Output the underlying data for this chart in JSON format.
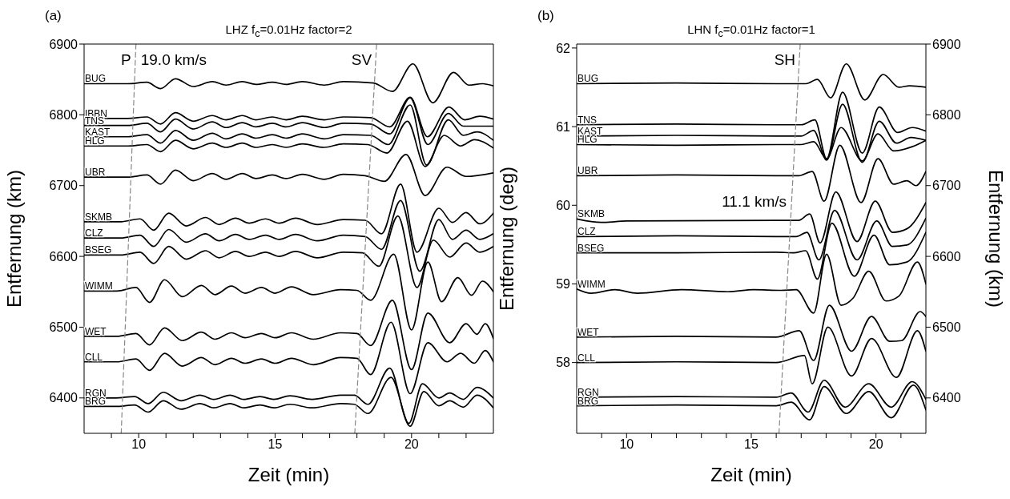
{
  "chart_data": [
    {
      "type": "line",
      "title": "LHZ f$_{c}$=0.01Hz factor=2",
      "xlabel": "Zeit (min)",
      "ylabel": "Entfernung (km)",
      "xlim": [
        8,
        23
      ],
      "ylim": [
        6350,
        6900
      ],
      "xticks": [
        {
          "value": 9,
          "label": null
        },
        10,
        {
          "value": 11,
          "label": null
        },
        {
          "value": 12,
          "label": null
        },
        {
          "value": 13,
          "label": null
        },
        {
          "value": 14,
          "label": null
        },
        15,
        {
          "value": 16,
          "label": null
        },
        {
          "value": 17,
          "label": null
        },
        {
          "value": 18,
          "label": null
        },
        {
          "value": 19,
          "label": null
        },
        20,
        {
          "value": 21,
          "label": null
        },
        {
          "value": 22,
          "label": null
        }
      ],
      "yticks": [
        6400,
        6500,
        6600,
        6700,
        6800,
        6900
      ],
      "annotations": [
        "(a)",
        {
          "text": "P",
          "x": 9.9,
          "y": 6900
        },
        {
          "text": "19.0 km/s",
          "x": 9.9,
          "y": 6900
        },
        {
          "text": "SV",
          "x": 18.72,
          "y": 6900
        }
      ],
      "series": [
        {
          "name": "BUG",
          "color": "#000000",
          "x": [
            8,
            9.6,
            10.3,
            10.8,
            11.35,
            12.0,
            12.7,
            13.2,
            13.8,
            14.3,
            14.9,
            15.4,
            16.0,
            16.8,
            17.5,
            18.6,
            19.3,
            20.05,
            20.78,
            21.54,
            22.1,
            22.6,
            23
          ],
          "values": [
            6844,
            6844,
            6846,
            6837,
            6851,
            6840,
            6847,
            6842,
            6847,
            6843,
            6846,
            6843,
            6847,
            6842,
            6847,
            6845,
            6833,
            6872,
            6817,
            6860,
            6842,
            6844,
            6841
          ]
        },
        {
          "name": "IBBN",
          "color": "#000000",
          "x": [
            8,
            9.6,
            10.3,
            10.8,
            11.35,
            12.0,
            12.7,
            13.2,
            13.8,
            14.3,
            14.9,
            15.4,
            16.0,
            16.8,
            17.5,
            18.5,
            19.2,
            19.95,
            20.58,
            21.37,
            21.95,
            22.5,
            23
          ],
          "values": [
            6795,
            6795,
            6797,
            6787,
            6803,
            6791,
            6799,
            6793,
            6799,
            6793,
            6797,
            6793,
            6798,
            6793,
            6797,
            6796,
            6783,
            6825,
            6769,
            6811,
            6793,
            6798,
            6794
          ]
        },
        {
          "name": "TNS",
          "color": "#000000",
          "x": [
            8,
            9.6,
            10.3,
            10.8,
            11.35,
            12.0,
            12.7,
            13.2,
            13.8,
            14.3,
            14.9,
            15.4,
            16.0,
            16.8,
            17.5,
            18.5,
            19.2,
            19.95,
            20.6,
            21.35,
            21.9,
            23
          ],
          "values": [
            6785,
            6785,
            6788,
            6776,
            6794,
            6780,
            6790,
            6782,
            6789,
            6783,
            6788,
            6783,
            6789,
            6782,
            6788,
            6787,
            6773,
            6824,
            6758,
            6802,
            6784,
            6784
          ]
        },
        {
          "name": "KAST",
          "color": "#000000",
          "x": [
            8,
            9.6,
            10.3,
            10.8,
            11.35,
            12.0,
            12.7,
            13.2,
            13.8,
            14.3,
            14.9,
            15.4,
            16.0,
            16.8,
            17.5,
            18.5,
            19.15,
            19.95,
            20.55,
            21.35,
            21.9,
            22.4,
            23
          ],
          "values": [
            6769,
            6769,
            6772,
            6760,
            6778,
            6764,
            6774,
            6766,
            6773,
            6767,
            6772,
            6767,
            6773,
            6766,
            6772,
            6771,
            6758,
            6814,
            6729,
            6793,
            6771,
            6776,
            6764
          ]
        },
        {
          "name": "HLG",
          "color": "#000000",
          "x": [
            8,
            9.6,
            10.3,
            10.8,
            11.35,
            12.0,
            12.7,
            13.2,
            13.8,
            14.3,
            14.9,
            15.4,
            16.0,
            16.8,
            17.5,
            18.4,
            19.1,
            19.85,
            20.5,
            21.2,
            21.8,
            22.3,
            23
          ],
          "values": [
            6756,
            6756,
            6758,
            6748,
            6764,
            6752,
            6760,
            6754,
            6760,
            6754,
            6758,
            6754,
            6759,
            6754,
            6759,
            6758,
            6746,
            6791,
            6727,
            6771,
            6756,
            6765,
            6753
          ]
        },
        {
          "name": "UBR",
          "color": "#000000",
          "x": [
            8,
            9.6,
            10.3,
            10.8,
            11.35,
            12.0,
            12.7,
            13.2,
            13.8,
            14.3,
            14.9,
            15.4,
            16.0,
            16.8,
            17.5,
            18.3,
            19.0,
            19.8,
            20.5,
            21.3,
            22.0,
            23
          ],
          "values": [
            6712,
            6712,
            6715,
            6702,
            6722,
            6707,
            6717,
            6709,
            6717,
            6710,
            6715,
            6710,
            6716,
            6709,
            6716,
            6714,
            6706,
            6744,
            6686,
            6726,
            6713,
            6718
          ]
        },
        {
          "name": "SKMB",
          "color": "#000000",
          "x": [
            8,
            9.35,
            10.05,
            10.55,
            11.1,
            11.75,
            12.45,
            12.95,
            13.55,
            14.05,
            14.65,
            15.15,
            15.75,
            16.55,
            17.5,
            18.3,
            18.9,
            19.6,
            20.2,
            21.0,
            21.5,
            22.0,
            22.5,
            23
          ],
          "values": [
            6649,
            6649,
            6653,
            6637,
            6661,
            6643,
            6655,
            6645,
            6654,
            6647,
            6653,
            6647,
            6654,
            6645,
            6652,
            6651,
            6632,
            6702,
            6606,
            6668,
            6648,
            6662,
            6646,
            6661
          ]
        },
        {
          "name": "CLZ",
          "color": "#000000",
          "x": [
            8,
            9.35,
            10.05,
            10.55,
            11.1,
            11.75,
            12.45,
            12.95,
            13.55,
            14.05,
            14.65,
            15.15,
            15.75,
            16.55,
            17.5,
            18.3,
            18.9,
            19.6,
            20.3,
            21.0,
            21.5,
            22.0,
            22.5,
            23
          ],
          "values": [
            6626,
            6626,
            6630,
            6614,
            6638,
            6620,
            6632,
            6622,
            6631,
            6624,
            6630,
            6624,
            6631,
            6622,
            6630,
            6628,
            6610,
            6679,
            6579,
            6652,
            6624,
            6637,
            6624,
            6632
          ]
        },
        {
          "name": "BSEG",
          "color": "#000000",
          "x": [
            8,
            9.35,
            10.05,
            10.55,
            11.1,
            11.75,
            12.45,
            12.95,
            13.55,
            14.05,
            14.65,
            15.15,
            15.75,
            16.55,
            17.5,
            18.2,
            18.8,
            19.5,
            20.2,
            20.8,
            21.4,
            22.0,
            22.5,
            23
          ],
          "values": [
            6602,
            6602,
            6606,
            6590,
            6614,
            6596,
            6608,
            6598,
            6607,
            6600,
            6606,
            6600,
            6607,
            6598,
            6606,
            6605,
            6586,
            6657,
            6556,
            6623,
            6599,
            6619,
            6606,
            6614
          ]
        },
        {
          "name": "WIMM",
          "color": "#000000",
          "x": [
            8,
            9.2,
            9.9,
            10.4,
            10.95,
            11.6,
            12.3,
            12.8,
            13.4,
            13.9,
            14.5,
            15.0,
            15.6,
            16.4,
            17.4,
            18.0,
            18.5,
            19.35,
            20.0,
            20.6,
            21.1,
            21.7,
            22.2,
            22.6,
            23
          ],
          "values": [
            6551,
            6551,
            6556,
            6535,
            6567,
            6543,
            6559,
            6546,
            6558,
            6548,
            6556,
            6548,
            6557,
            6546,
            6553,
            6552,
            6538,
            6603,
            6496,
            6592,
            6536,
            6570,
            6545,
            6565,
            6550
          ]
        },
        {
          "name": "WET",
          "color": "#000000",
          "x": [
            8,
            9.2,
            9.9,
            10.4,
            10.95,
            11.6,
            12.3,
            12.8,
            13.4,
            13.9,
            14.5,
            15.0,
            15.6,
            16.4,
            17.4,
            18.0,
            18.5,
            19.3,
            20.0,
            20.6,
            21.4,
            22.0,
            22.4,
            22.7,
            23
          ],
          "values": [
            6487,
            6487,
            6491,
            6475,
            6499,
            6481,
            6493,
            6483,
            6492,
            6485,
            6491,
            6485,
            6492,
            6483,
            6492,
            6491,
            6474,
            6538,
            6440,
            6520,
            6478,
            6505,
            6490,
            6505,
            6484
          ]
        },
        {
          "name": "CLL",
          "color": "#000000",
          "x": [
            8,
            9.2,
            9.9,
            10.4,
            10.95,
            11.6,
            12.3,
            12.8,
            13.4,
            13.9,
            14.5,
            15.0,
            15.6,
            16.4,
            17.4,
            18.0,
            18.5,
            19.25,
            19.95,
            20.6,
            21.3,
            21.8,
            22.3,
            22.7,
            23
          ],
          "values": [
            6451,
            6451,
            6455,
            6439,
            6463,
            6445,
            6457,
            6447,
            6456,
            6449,
            6455,
            6449,
            6456,
            6447,
            6457,
            6456,
            6433,
            6507,
            6406,
            6478,
            6451,
            6463,
            6449,
            6467,
            6451
          ]
        },
        {
          "name": "RGN",
          "color": "#000000",
          "x": [
            8,
            9.15,
            9.85,
            10.35,
            10.9,
            11.55,
            12.25,
            12.75,
            13.35,
            13.85,
            14.45,
            14.95,
            15.55,
            16.35,
            17.4,
            17.9,
            18.4,
            19.2,
            19.9,
            20.4,
            21.0,
            21.4,
            21.9,
            22.4,
            23
          ],
          "values": [
            6400,
            6400,
            6402,
            6392,
            6408,
            6396,
            6404,
            6398,
            6404,
            6398,
            6402,
            6398,
            6403,
            6398,
            6404,
            6404,
            6391,
            6442,
            6364,
            6420,
            6400,
            6407,
            6398,
            6415,
            6400
          ]
        },
        {
          "name": "BRG",
          "color": "#000000",
          "x": [
            8,
            9.15,
            9.85,
            10.35,
            10.9,
            11.55,
            12.25,
            12.75,
            13.35,
            13.85,
            14.45,
            14.95,
            15.55,
            16.35,
            17.4,
            17.9,
            18.4,
            19.25,
            19.95,
            20.45,
            21.0,
            21.4,
            21.9,
            22.4,
            23
          ],
          "values": [
            6388,
            6388,
            6390,
            6380,
            6396,
            6384,
            6392,
            6386,
            6392,
            6386,
            6390,
            6386,
            6391,
            6386,
            6392,
            6391,
            6378,
            6429,
            6360,
            6409,
            6389,
            6396,
            6387,
            6404,
            6386
          ]
        },
        {
          "color": "#888888",
          "line_style": "dashed",
          "x": [
            9.36,
            9.9
          ],
          "values": [
            6350,
            6900
          ]
        },
        {
          "color": "#888888",
          "line_style": "dashed",
          "x": [
            17.92,
            18.72
          ],
          "values": [
            6350,
            6900
          ]
        }
      ]
    },
    {
      "type": "line",
      "title": "LHN f$_{c}$=0.01Hz factor=1",
      "xlabel": "Zeit (min)",
      "ylabel": "Entfernung (deg)",
      "y2label": "Entfernung (km)",
      "xlim": [
        8,
        22
      ],
      "ylim": [
        57.1,
        62.05
      ],
      "y2lim": [
        6350,
        6900
      ],
      "xticks": [
        {
          "value": 9,
          "label": null
        },
        10,
        {
          "value": 11,
          "label": null
        },
        {
          "value": 12,
          "label": null
        },
        {
          "value": 13,
          "label": null
        },
        {
          "value": 14,
          "label": null
        },
        15,
        {
          "value": 16,
          "label": null
        },
        {
          "value": 17,
          "label": null
        },
        {
          "value": 18,
          "label": null
        },
        {
          "value": 19,
          "label": null
        },
        20,
        {
          "value": 21,
          "label": null
        }
      ],
      "yticks": [
        58,
        59,
        60,
        61,
        62
      ],
      "y2ticks": [
        6400,
        6500,
        6600,
        6700,
        6800,
        6900
      ],
      "annotations": [
        "(b)",
        {
          "text": "SH",
          "x": 16.96,
          "y": 62.05
        },
        {
          "text": "11.1 km/s",
          "x": 16.61,
          "y": 60.04
        }
      ],
      "series": [
        {
          "name": "BUG",
          "color": "#000000",
          "axis": "y2",
          "x": [
            8,
            12,
            16,
            17.2,
            17.65,
            18.18,
            18.81,
            19.55,
            20.29,
            20.92,
            21.35,
            22
          ],
          "values": [
            6844,
            6845,
            6844,
            6844,
            6850,
            6824,
            6872,
            6821,
            6857,
            6839,
            6841,
            6839
          ]
        },
        {
          "name": "TNS",
          "color": "#000000",
          "axis": "y2",
          "x": [
            8,
            12,
            16,
            17.0,
            17.55,
            18.02,
            18.66,
            19.45,
            20.13,
            20.87,
            21.45,
            22
          ],
          "values": [
            6786,
            6787,
            6786,
            6786,
            6793,
            6738,
            6832,
            6746,
            6811,
            6775,
            6782,
            6777
          ]
        },
        {
          "name": "KAST",
          "color": "#000000",
          "axis": "y2",
          "x": [
            8,
            12,
            16,
            17.0,
            17.5,
            18.02,
            18.66,
            19.45,
            20.13,
            20.82,
            21.4,
            22
          ],
          "values": [
            6770,
            6771,
            6770,
            6770,
            6778,
            6736,
            6815,
            6733,
            6791,
            6760,
            6768,
            6764
          ]
        },
        {
          "name": "HLG",
          "color": "#000000",
          "axis": "y2",
          "x": [
            8,
            12,
            16,
            17.0,
            17.5,
            18.02,
            18.6,
            19.45,
            20.08,
            20.71,
            21.45,
            22
          ],
          "values": [
            6758,
            6757,
            6758,
            6758,
            6762,
            6738,
            6782,
            6735,
            6773,
            6749,
            6755,
            6764
          ]
        },
        {
          "name": "UBR",
          "color": "#000000",
          "axis": "y2",
          "x": [
            8,
            12,
            16,
            16.9,
            17.44,
            17.92,
            18.55,
            19.4,
            20.08,
            20.71,
            21.24,
            21.6,
            22
          ],
          "values": [
            6714,
            6715,
            6714,
            6714,
            6720,
            6678,
            6757,
            6676,
            6738,
            6702,
            6707,
            6700,
            6720
          ]
        },
        {
          "name": "SKMB",
          "color": "#000000",
          "axis": "y2",
          "x": [
            8,
            9,
            10,
            16,
            16.9,
            17.34,
            17.76,
            18.39,
            19.24,
            19.97,
            20.66,
            21.24,
            22
          ],
          "values": [
            6653,
            6648,
            6650,
            6651,
            6651,
            6660,
            6619,
            6691,
            6621,
            6678,
            6634,
            6639,
            6676
          ]
        },
        {
          "name": "CLZ",
          "color": "#000000",
          "axis": "y2",
          "x": [
            8,
            12,
            16,
            16.8,
            17.23,
            17.71,
            18.34,
            19.24,
            20.03,
            20.66,
            21.24,
            22
          ],
          "values": [
            6628,
            6629,
            6628,
            6628,
            6634,
            6595,
            6665,
            6595,
            6650,
            6614,
            6616,
            6654
          ]
        },
        {
          "name": "BSEG",
          "color": "#000000",
          "axis": "y2",
          "x": [
            8,
            12,
            16,
            16.7,
            17.18,
            17.65,
            18.23,
            19.13,
            19.92,
            20.55,
            21.24,
            22
          ],
          "values": [
            6605,
            6605,
            6606,
            6605,
            6608,
            6568,
            6647,
            6572,
            6630,
            6588,
            6592,
            6634
          ]
        },
        {
          "name": "WIMM",
          "color": "#000000",
          "axis": "y2",
          "x": [
            8,
            8.58,
            9.53,
            10.43,
            12.2,
            14.07,
            15.1,
            16.2,
            16.8,
            17.5,
            18.02,
            18.6,
            19.08,
            19.71,
            20.4,
            20.92,
            21.66,
            22
          ],
          "values": [
            6554,
            6548,
            6553,
            6548,
            6553,
            6550,
            6553,
            6552,
            6553,
            6520,
            6603,
            6531,
            6541,
            6579,
            6537,
            6544,
            6592,
            6561
          ]
        },
        {
          "name": "WET",
          "color": "#000000",
          "axis": "y2",
          "x": [
            8,
            12,
            16,
            16.92,
            17.5,
            18.13,
            19.02,
            19.82,
            20.55,
            21.03,
            21.77,
            22
          ],
          "values": [
            6486,
            6487,
            6486,
            6495,
            6453,
            6531,
            6466,
            6515,
            6480,
            6481,
            6522,
            6515
          ]
        },
        {
          "name": "CLL",
          "color": "#000000",
          "axis": "y2",
          "x": [
            8,
            12,
            16,
            17.13,
            17.44,
            18.07,
            19.02,
            19.82,
            20.82,
            21.66,
            22
          ],
          "values": [
            6450,
            6451,
            6450,
            6460,
            6420,
            6500,
            6431,
            6484,
            6429,
            6495,
            6466
          ]
        },
        {
          "name": "RGN",
          "color": "#000000",
          "axis": "y2",
          "x": [
            8,
            12,
            16,
            16.6,
            17.28,
            17.92,
            18.76,
            19.71,
            20.61,
            21.45,
            22
          ],
          "values": [
            6401,
            6402,
            6401,
            6407,
            6380,
            6425,
            6387,
            6420,
            6387,
            6423,
            6398
          ]
        },
        {
          "name": "BRG",
          "color": "#000000",
          "axis": "y2",
          "x": [
            8,
            12,
            16,
            16.6,
            17.34,
            17.92,
            18.81,
            19.71,
            20.61,
            21.5,
            22
          ],
          "values": [
            6389,
            6390,
            6389,
            6394,
            6369,
            6416,
            6378,
            6409,
            6372,
            6418,
            6383
          ]
        },
        {
          "color": "#888888",
          "line_style": "dashed",
          "axis": "y2",
          "x": [
            16.11,
            16.96
          ],
          "values": [
            6350,
            6900
          ]
        }
      ]
    }
  ]
}
